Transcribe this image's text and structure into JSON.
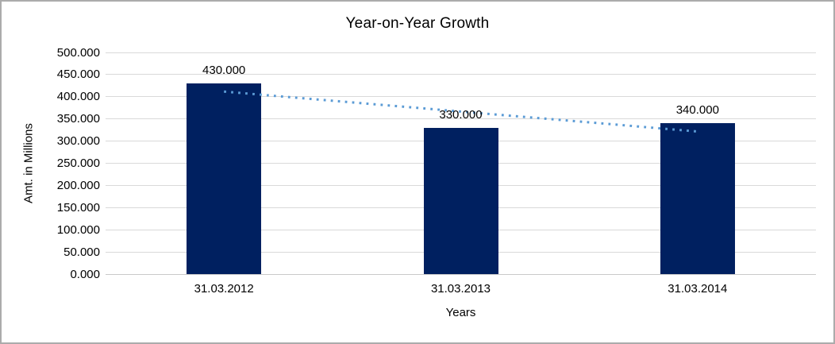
{
  "chart_data": {
    "type": "bar",
    "title": "Year-on-Year Growth",
    "xlabel": "Years",
    "ylabel": "Amt. in Millions",
    "categories": [
      "31.03.2012",
      "31.03.2013",
      "31.03.2014"
    ],
    "values": [
      430,
      330,
      340
    ],
    "value_labels": [
      "430.000",
      "330.000",
      "340.000"
    ],
    "ylim": [
      0,
      500
    ],
    "ytick_step": 50,
    "ytick_labels": [
      "0.000",
      "50.000",
      "100.000",
      "150.000",
      "200.000",
      "250.000",
      "300.000",
      "350.000",
      "400.000",
      "450.000",
      "500.000"
    ],
    "grid": true,
    "legend": "none",
    "trendline": {
      "type": "linear",
      "style": "dotted"
    },
    "colors": {
      "bar": "#002060",
      "trendline": "#5b9bd5",
      "gridline": "#d9d9d9",
      "axis_line": "#c9c9c9",
      "text": "#000000",
      "frame_border": "#ababab",
      "background": "#ffffff"
    }
  }
}
